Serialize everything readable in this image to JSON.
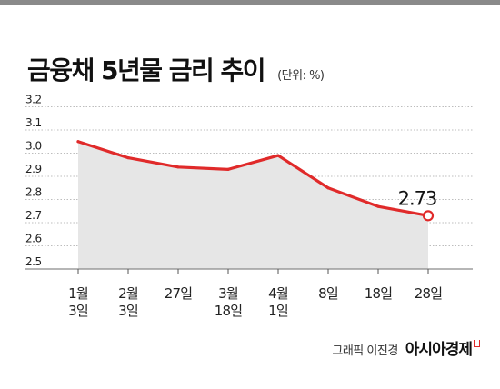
{
  "header": {
    "title": "금융채 5년물 금리 추이",
    "unit": "(단위: %)"
  },
  "footer": {
    "credit": "그래픽 이진경",
    "brand": "아시아경제"
  },
  "chart_data": {
    "type": "area",
    "title": "금융채 5년물 금리 추이",
    "unit": "(단위: %)",
    "categories": [
      [
        "1월",
        "3일"
      ],
      [
        "2월",
        "3일"
      ],
      [
        "27일"
      ],
      [
        "3월",
        "18일"
      ],
      [
        "4월",
        "1일"
      ],
      [
        "8일"
      ],
      [
        "18일"
      ],
      [
        "28일"
      ]
    ],
    "values": [
      3.05,
      2.98,
      2.94,
      2.93,
      2.99,
      2.85,
      2.77,
      2.73
    ],
    "yticks": [
      "2.5",
      "2.6",
      "2.7",
      "2.8",
      "2.9",
      "3.0",
      "3.1",
      "3.2"
    ],
    "ylim": [
      2.5,
      3.2
    ],
    "grid": true,
    "annotation": {
      "index": 7,
      "text": "2.73"
    },
    "colors": {
      "line": "#e02a2a",
      "area": "#e6e6e6",
      "grid": "#bdbdbd",
      "axis": "#8a8a8a"
    }
  }
}
